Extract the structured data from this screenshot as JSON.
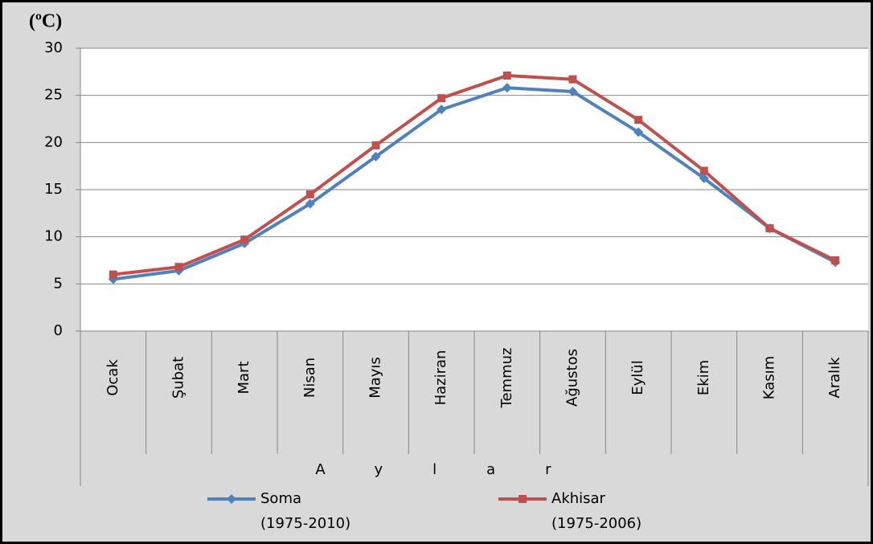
{
  "chart_data": {
    "type": "line",
    "title": "(ºC)",
    "x_label": "Aylar",
    "categories": [
      "Ocak",
      "Şubat",
      "Mart",
      "Nisan",
      "Mayıs",
      "Haziran",
      "Temmuz",
      "Ağustos",
      "Eylül",
      "Ekim",
      "Kasım",
      "Aralık"
    ],
    "series": [
      {
        "name": "Soma\n(1975-2010)",
        "color": "#4f81bd",
        "marker": "diamond",
        "values": [
          5.5,
          6.4,
          9.3,
          13.5,
          18.5,
          23.5,
          25.8,
          25.4,
          21.1,
          16.2,
          10.9,
          7.3
        ]
      },
      {
        "name": "Akhisar\n(1975-2006)",
        "color": "#c0504d",
        "marker": "square",
        "values": [
          6.0,
          6.8,
          9.7,
          14.5,
          19.7,
          24.7,
          27.1,
          26.7,
          22.4,
          17.0,
          10.9,
          7.5
        ]
      }
    ],
    "ylim": [
      0,
      30
    ],
    "yticks": [
      0,
      5,
      10,
      15,
      20,
      25,
      30
    ],
    "grid": true
  }
}
